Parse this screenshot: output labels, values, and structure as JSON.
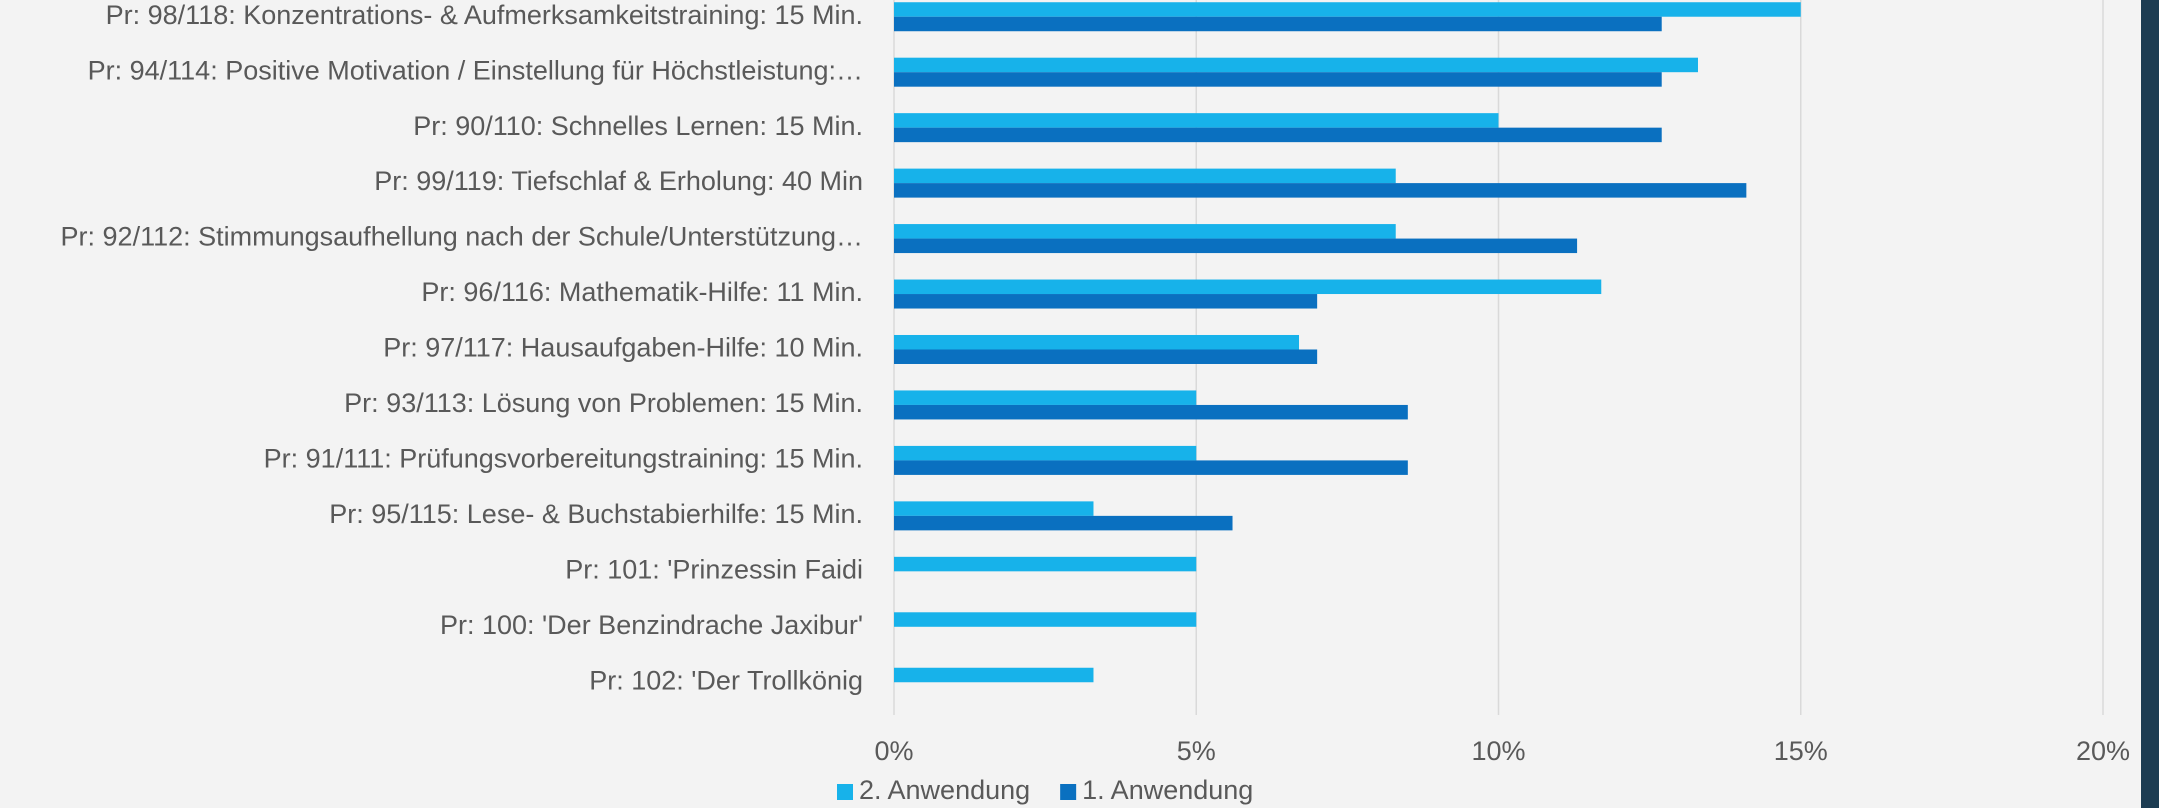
{
  "chart_data": {
    "type": "bar",
    "orientation": "horizontal",
    "categories": [
      "Pr: 98/118: Konzentrations- & Aufmerksamkeitstraining: 15 Min.",
      "Pr: 94/114: Positive Motivation / Einstellung für Höchstleistung:…",
      "Pr: 90/110: Schnelles Lernen: 15 Min.",
      "Pr: 99/119: Tiefschlaf & Erholung: 40 Min",
      "Pr: 92/112: Stimmungsaufhellung nach der Schule/Unterstützung…",
      "Pr: 96/116: Mathematik-Hilfe: 11 Min.",
      "Pr: 97/117: Hausaufgaben-Hilfe: 10 Min.",
      "Pr: 93/113: Lösung von Problemen: 15 Min.",
      "Pr: 91/111: Prüfungsvorbereitungstraining: 15 Min.",
      "Pr: 95/115: Lese- & Buchstabierhilfe: 15 Min.",
      "Pr: 101: 'Prinzessin Faidi",
      "Pr: 100: 'Der Benzindrache Jaxibur'",
      "Pr: 102: 'Der Trollkönig"
    ],
    "series": [
      {
        "name": "2. Anwendung",
        "color": "#17b2ea",
        "values": [
          15,
          13.3,
          10,
          8.3,
          8.3,
          11.7,
          6.7,
          5,
          5,
          3.3,
          5,
          5,
          3.3
        ]
      },
      {
        "name": "1. Anwendung",
        "color": "#0a70c0",
        "values": [
          12.7,
          12.7,
          12.7,
          14.1,
          11.3,
          7.0,
          7.0,
          8.5,
          8.5,
          5.6,
          null,
          null,
          null
        ]
      }
    ],
    "xlim": [
      0,
      20
    ],
    "xticks": [
      {
        "value": 0,
        "label": "0%"
      },
      {
        "value": 5,
        "label": "5%"
      },
      {
        "value": 10,
        "label": "10%"
      },
      {
        "value": 15,
        "label": "15%"
      },
      {
        "value": 20,
        "label": "20%"
      }
    ],
    "grid": true,
    "legend": "bottom"
  }
}
